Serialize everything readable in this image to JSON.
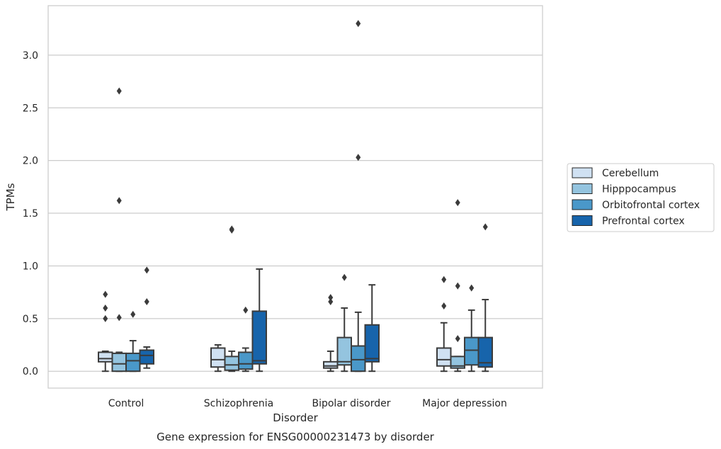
{
  "chart_data": {
    "type": "box",
    "caption": "Gene expression for ENSG00000231473 by disorder",
    "xlabel": "Disorder",
    "ylabel": "TPMs",
    "ylim": [
      -0.16,
      3.47
    ],
    "yticks": [
      0.0,
      0.5,
      1.0,
      1.5,
      2.0,
      2.5,
      3.0
    ],
    "ytick_labels": [
      "0.0",
      "0.5",
      "1.0",
      "1.5",
      "2.0",
      "2.5",
      "3.0"
    ],
    "grid": "horizontal",
    "legend": "outside-right",
    "categories": [
      "Control",
      "Schizophrenia",
      "Bipolar disorder",
      "Major depression"
    ],
    "series": [
      {
        "name": "Cerebellum",
        "color": "#d0e1f2",
        "boxes": [
          {
            "whisker_low": 0.0,
            "q1": 0.09,
            "median": 0.12,
            "q3": 0.18,
            "whisker_high": 0.19,
            "outliers": [
              0.5,
              0.6,
              0.73
            ]
          },
          {
            "whisker_low": 0.0,
            "q1": 0.04,
            "median": 0.11,
            "q3": 0.22,
            "whisker_high": 0.25,
            "outliers": []
          },
          {
            "whisker_low": 0.0,
            "q1": 0.03,
            "median": 0.05,
            "q3": 0.09,
            "whisker_high": 0.19,
            "outliers": [
              0.66,
              0.7
            ]
          },
          {
            "whisker_low": 0.0,
            "q1": 0.05,
            "median": 0.11,
            "q3": 0.22,
            "whisker_high": 0.46,
            "outliers": [
              0.62,
              0.87
            ]
          }
        ]
      },
      {
        "name": "Hipppocampus",
        "color": "#94c4df",
        "boxes": [
          {
            "whisker_low": 0.0,
            "q1": 0.0,
            "median": 0.07,
            "q3": 0.17,
            "whisker_high": 0.18,
            "outliers": [
              0.51,
              1.62,
              2.66
            ]
          },
          {
            "whisker_low": 0.0,
            "q1": 0.01,
            "median": 0.06,
            "q3": 0.14,
            "whisker_high": 0.19,
            "outliers": [
              1.34,
              1.35
            ]
          },
          {
            "whisker_low": 0.0,
            "q1": 0.06,
            "median": 0.09,
            "q3": 0.32,
            "whisker_high": 0.6,
            "outliers": [
              0.89
            ]
          },
          {
            "whisker_low": 0.0,
            "q1": 0.03,
            "median": 0.05,
            "q3": 0.14,
            "whisker_high": 0.14,
            "outliers": [
              0.31,
              0.81,
              1.6
            ]
          }
        ]
      },
      {
        "name": "Orbitofrontal cortex",
        "color": "#4a98c9",
        "boxes": [
          {
            "whisker_low": 0.0,
            "q1": 0.0,
            "median": 0.1,
            "q3": 0.17,
            "whisker_high": 0.29,
            "outliers": [
              0.54
            ]
          },
          {
            "whisker_low": 0.0,
            "q1": 0.02,
            "median": 0.07,
            "q3": 0.18,
            "whisker_high": 0.22,
            "outliers": [
              0.58
            ]
          },
          {
            "whisker_low": 0.0,
            "q1": 0.0,
            "median": 0.11,
            "q3": 0.24,
            "whisker_high": 0.56,
            "outliers": [
              2.03,
              3.3
            ]
          },
          {
            "whisker_low": 0.0,
            "q1": 0.06,
            "median": 0.2,
            "q3": 0.32,
            "whisker_high": 0.58,
            "outliers": [
              0.79
            ]
          }
        ]
      },
      {
        "name": "Prefrontal cortex",
        "color": "#1764ab",
        "boxes": [
          {
            "whisker_low": 0.03,
            "q1": 0.07,
            "median": 0.15,
            "q3": 0.2,
            "whisker_high": 0.23,
            "outliers": [
              0.66,
              0.96
            ]
          },
          {
            "whisker_low": 0.0,
            "q1": 0.07,
            "median": 0.1,
            "q3": 0.57,
            "whisker_high": 0.97,
            "outliers": []
          },
          {
            "whisker_low": 0.0,
            "q1": 0.09,
            "median": 0.12,
            "q3": 0.44,
            "whisker_high": 0.82,
            "outliers": []
          },
          {
            "whisker_low": 0.0,
            "q1": 0.04,
            "median": 0.08,
            "q3": 0.32,
            "whisker_high": 0.68,
            "outliers": [
              1.37
            ]
          }
        ]
      }
    ]
  }
}
